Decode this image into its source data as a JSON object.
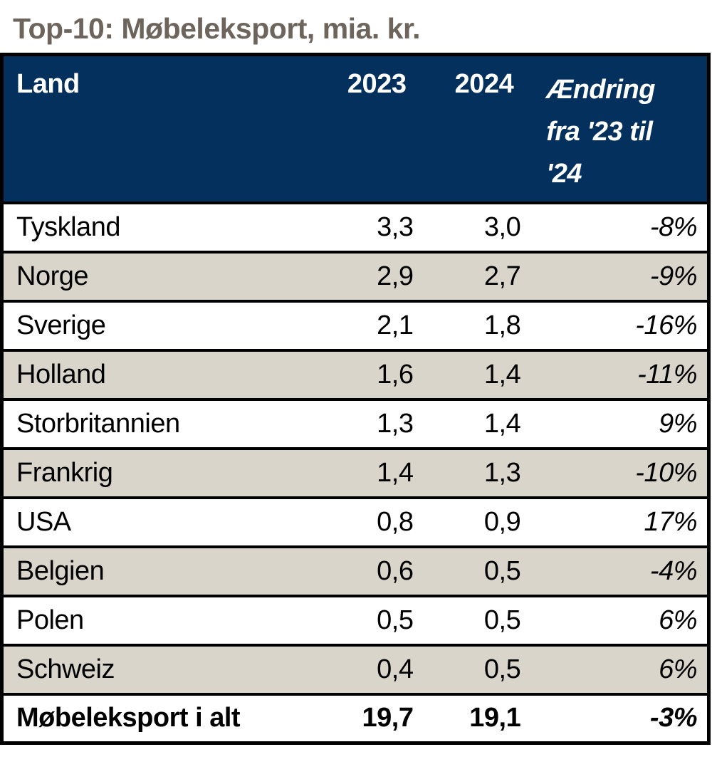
{
  "title": "Top-10: Møbeleksport, mia. kr.",
  "table": {
    "header": {
      "land": "Land",
      "y2023": "2023",
      "y2024": "2024",
      "change": "Ændring fra '23 til '24"
    },
    "rows": [
      {
        "land": "Tyskland",
        "y2023": "3,3",
        "y2024": "3,0",
        "change": "-8%"
      },
      {
        "land": "Norge",
        "y2023": "2,9",
        "y2024": "2,7",
        "change": "-9%"
      },
      {
        "land": "Sverige",
        "y2023": "2,1",
        "y2024": "1,8",
        "change": "-16%"
      },
      {
        "land": "Holland",
        "y2023": "1,6",
        "y2024": "1,4",
        "change": "-11%"
      },
      {
        "land": "Storbritannien",
        "y2023": "1,3",
        "y2024": "1,4",
        "change": "9%"
      },
      {
        "land": "Frankrig",
        "y2023": "1,4",
        "y2024": "1,3",
        "change": "-10%"
      },
      {
        "land": "USA",
        "y2023": "0,8",
        "y2024": "0,9",
        "change": "17%"
      },
      {
        "land": "Belgien",
        "y2023": "0,6",
        "y2024": "0,5",
        "change": "-4%"
      },
      {
        "land": "Polen",
        "y2023": "0,5",
        "y2024": "0,5",
        "change": "6%"
      },
      {
        "land": "Schweiz",
        "y2023": "0,4",
        "y2024": "0,5",
        "change": "6%"
      }
    ],
    "total": {
      "land": "Møbeleksport i alt",
      "y2023": "19,7",
      "y2024": "19,1",
      "change": "-3%"
    }
  },
  "chart_data": {
    "type": "table",
    "title": "Top-10: Møbeleksport, mia. kr.",
    "columns": [
      "Land",
      "2023",
      "2024",
      "Ændring fra '23 til '24"
    ],
    "categories": [
      "Tyskland",
      "Norge",
      "Sverige",
      "Holland",
      "Storbritannien",
      "Frankrig",
      "USA",
      "Belgien",
      "Polen",
      "Schweiz"
    ],
    "series": [
      {
        "name": "2023",
        "unit": "mia. kr.",
        "values": [
          3.3,
          2.9,
          2.1,
          1.6,
          1.3,
          1.4,
          0.8,
          0.6,
          0.5,
          0.4
        ]
      },
      {
        "name": "2024",
        "unit": "mia. kr.",
        "values": [
          3.0,
          2.7,
          1.8,
          1.4,
          1.4,
          1.3,
          0.9,
          0.5,
          0.5,
          0.5
        ]
      },
      {
        "name": "Ændring fra '23 til '24",
        "unit": "%",
        "values": [
          -8,
          -9,
          -16,
          -11,
          9,
          -10,
          17,
          -4,
          6,
          6
        ]
      }
    ],
    "total_row": {
      "label": "Møbeleksport i alt",
      "y2023": 19.7,
      "y2024": 19.1,
      "change_pct": -3
    }
  },
  "colors": {
    "header_bg": "#04305E",
    "header_text": "#FFFFFF",
    "row_bg": "#FFFFFF",
    "row_alt_bg": "#D9D5CB",
    "title_text": "#6D655C",
    "border": "#000000",
    "body_text": "#000000"
  }
}
